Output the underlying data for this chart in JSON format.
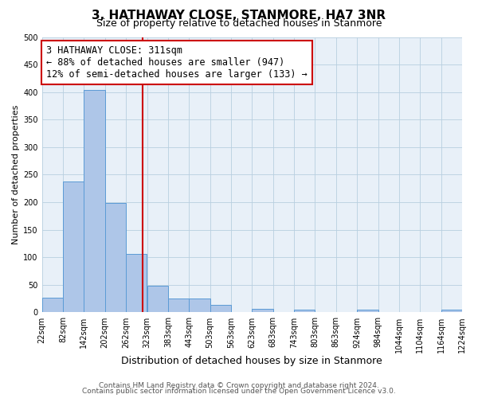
{
  "title": "3, HATHAWAY CLOSE, STANMORE, HA7 3NR",
  "subtitle": "Size of property relative to detached houses in Stanmore",
  "xlabel": "Distribution of detached houses by size in Stanmore",
  "ylabel": "Number of detached properties",
  "bar_left_edges": [
    22,
    82,
    142,
    202,
    262,
    323,
    383,
    443,
    503,
    563,
    623,
    683,
    743,
    803,
    863,
    924,
    984,
    1044,
    1104,
    1164
  ],
  "bar_heights": [
    27,
    238,
    404,
    199,
    106,
    49,
    25,
    25,
    13,
    0,
    7,
    0,
    5,
    0,
    0,
    5,
    0,
    0,
    0,
    5
  ],
  "bin_width": 60,
  "bar_color": "#aec6e8",
  "bar_edge_color": "#5b9bd5",
  "property_line_x": 311,
  "property_line_color": "#cc0000",
  "annotation_line1": "3 HATHAWAY CLOSE: 311sqm",
  "annotation_line2": "← 88% of detached houses are smaller (947)",
  "annotation_line3": "12% of semi-detached houses are larger (133) →",
  "annotation_box_color": "#cc0000",
  "ylim": [
    0,
    500
  ],
  "xlim": [
    22,
    1224
  ],
  "xtick_labels": [
    "22sqm",
    "82sqm",
    "142sqm",
    "202sqm",
    "262sqm",
    "323sqm",
    "383sqm",
    "443sqm",
    "503sqm",
    "563sqm",
    "623sqm",
    "683sqm",
    "743sqm",
    "803sqm",
    "863sqm",
    "924sqm",
    "984sqm",
    "1044sqm",
    "1104sqm",
    "1164sqm",
    "1224sqm"
  ],
  "xtick_positions": [
    22,
    82,
    142,
    202,
    262,
    323,
    383,
    443,
    503,
    563,
    623,
    683,
    743,
    803,
    863,
    924,
    984,
    1044,
    1104,
    1164,
    1224
  ],
  "ytick_positions": [
    0,
    50,
    100,
    150,
    200,
    250,
    300,
    350,
    400,
    450,
    500
  ],
  "grid_color": "#b8cfe0",
  "background_color": "#e8f0f8",
  "fig_background": "#ffffff",
  "footer_line1": "Contains HM Land Registry data © Crown copyright and database right 2024.",
  "footer_line2": "Contains public sector information licensed under the Open Government Licence v3.0.",
  "title_fontsize": 11,
  "subtitle_fontsize": 9,
  "xlabel_fontsize": 9,
  "ylabel_fontsize": 8,
  "tick_fontsize": 7,
  "footer_fontsize": 6.5,
  "annotation_fontsize": 8.5
}
